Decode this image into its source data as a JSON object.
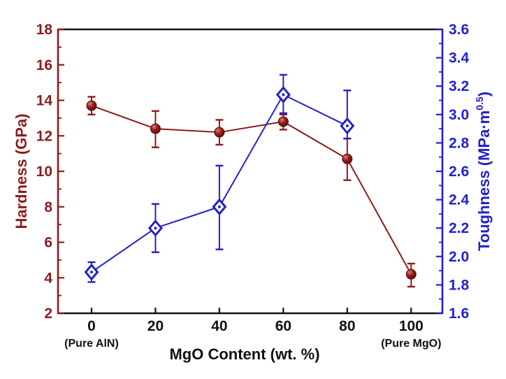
{
  "figure": {
    "background": "#ffffff",
    "title": ""
  },
  "chart_data": {
    "type": "line",
    "title": "",
    "xlabel": "MgO Content (wt. %)",
    "x_ticks": [
      0,
      20,
      40,
      60,
      80,
      100
    ],
    "x_tick_labels": [
      "0",
      "20",
      "40",
      "60",
      "80",
      "100"
    ],
    "x_sub_label_first": "(Pure AlN)",
    "x_sub_label_last": "(Pure MgO)",
    "grid": false,
    "legend": "none",
    "left_axis": {
      "label": "Hardness (GPa)",
      "min": 2,
      "max": 18,
      "major_step": 2,
      "minor_step": 1,
      "color": "#8e1b1b",
      "tick_labels": [
        "2",
        "4",
        "6",
        "8",
        "10",
        "12",
        "14",
        "16",
        "18"
      ]
    },
    "right_axis": {
      "label_main": "Toughness (MPa·m",
      "label_sup": "0.5",
      "label_close": ")",
      "min": 1.6,
      "max": 3.6,
      "major_step": 0.2,
      "minor_step": 0.1,
      "color": "#2121cd",
      "tick_labels": [
        "1.6",
        "1.8",
        "2.0",
        "2.2",
        "2.4",
        "2.6",
        "2.8",
        "3.0",
        "3.2",
        "3.4",
        "3.6"
      ]
    },
    "series": [
      {
        "name": "Hardness",
        "axis": "left",
        "marker": "filled-sphere-circle",
        "color": "#8e1b1b",
        "x": [
          0,
          20,
          40,
          60,
          80,
          100
        ],
        "values": [
          13.7,
          12.4,
          12.2,
          12.8,
          10.7,
          4.2
        ],
        "err_up": [
          0.5,
          1.0,
          0.7,
          0.4,
          1.15,
          0.6
        ],
        "err_down": [
          0.5,
          1.05,
          0.7,
          0.45,
          1.2,
          0.7
        ]
      },
      {
        "name": "Toughness",
        "axis": "right",
        "marker": "open-diamond",
        "color": "#2121cd",
        "x": [
          0,
          20,
          40,
          60,
          80
        ],
        "values": [
          1.89,
          2.2,
          2.35,
          3.14,
          2.92
        ],
        "err_up": [
          0.07,
          0.17,
          0.29,
          0.14,
          0.25
        ],
        "err_down": [
          0.07,
          0.17,
          0.3,
          0.13,
          0.09
        ]
      }
    ],
    "axis_frame_colors": {
      "top": "#111111",
      "bottom": "#111111",
      "left": "#8e1b1b",
      "right": "#2121cd"
    }
  }
}
